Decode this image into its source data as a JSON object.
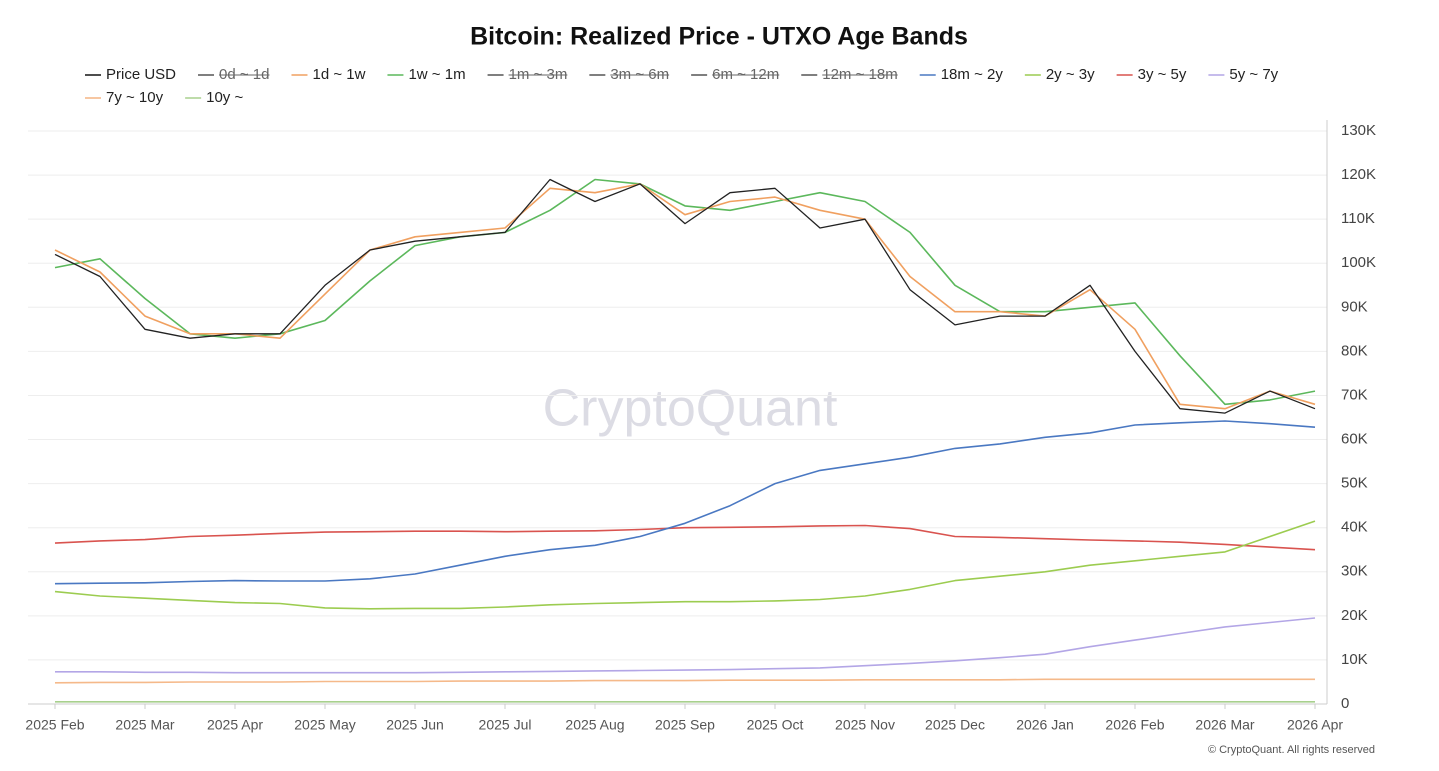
{
  "chart_data": {
    "type": "line",
    "title": "Bitcoin: Realized Price - UTXO Age Bands",
    "watermark": "CryptoQuant",
    "footer": "© CryptoQuant. All rights reserved",
    "categories": [
      "2025 Feb",
      null,
      "2025 Mar",
      null,
      "2025 Apr",
      null,
      "2025 May",
      null,
      "2025 Jun",
      null,
      "2025 Jul",
      null,
      "2025 Aug",
      null,
      "2025 Sep",
      null,
      "2025 Oct",
      null,
      "2025 Nov",
      null,
      "2025 Dec",
      null,
      "2026 Jan",
      null,
      "2026 Feb",
      null,
      "2026 Mar",
      null,
      "2026 Apr"
    ],
    "ylim": [
      0,
      130000
    ],
    "yticks": [
      0,
      {
        "value": 10000,
        "label": "10K"
      },
      {
        "value": 20000,
        "label": "20K"
      },
      {
        "value": 30000,
        "label": "30K"
      },
      {
        "value": 40000,
        "label": "40K"
      },
      {
        "value": 50000,
        "label": "50K"
      },
      {
        "value": 60000,
        "label": "60K"
      },
      {
        "value": 70000,
        "label": "70K"
      },
      {
        "value": 80000,
        "label": "80K"
      },
      {
        "value": 90000,
        "label": "90K"
      },
      {
        "value": 100000,
        "label": "100K"
      },
      {
        "value": 110000,
        "label": "110K"
      },
      {
        "value": 120000,
        "label": "120K"
      },
      {
        "value": 130000,
        "label": "130K"
      }
    ],
    "grid": true,
    "series": [
      {
        "name": "Price USD",
        "color": "#222222",
        "values": [
          102000,
          97000,
          85000,
          83000,
          84000,
          84000,
          95000,
          103000,
          105000,
          106000,
          107000,
          119000,
          114000,
          118000,
          109000,
          116000,
          117000,
          108000,
          110000,
          94000,
          86000,
          88000,
          88000,
          95000,
          80000,
          67000,
          66000,
          71000,
          67000
        ]
      },
      {
        "name": "0d ~ 1d",
        "color": "#555555",
        "visible": false
      },
      {
        "name": "1d ~ 1w",
        "color": "#f0a060",
        "values": [
          103000,
          98000,
          88000,
          84000,
          84000,
          83000,
          93000,
          103000,
          106000,
          107000,
          108000,
          117000,
          116000,
          118000,
          111000,
          114000,
          115000,
          112000,
          110000,
          97000,
          89000,
          89000,
          88000,
          94000,
          85000,
          68000,
          67000,
          71000,
          68000
        ]
      },
      {
        "name": "1w ~ 1m",
        "color": "#5cb85c",
        "values": [
          99000,
          101000,
          92000,
          84000,
          83000,
          84000,
          87000,
          96000,
          104000,
          106000,
          107000,
          112000,
          119000,
          118000,
          113000,
          112000,
          114000,
          116000,
          114000,
          107000,
          95000,
          89000,
          89000,
          90000,
          91000,
          79000,
          68000,
          69000,
          71000
        ]
      },
      {
        "name": "1m ~ 3m",
        "color": "#555555",
        "visible": false
      },
      {
        "name": "3m ~ 6m",
        "color": "#555555",
        "visible": false
      },
      {
        "name": "6m ~ 12m",
        "color": "#555555",
        "visible": false
      },
      {
        "name": "12m ~ 18m",
        "color": "#555555",
        "visible": false
      },
      {
        "name": "18m ~ 2y",
        "color": "#4a78c2",
        "values": [
          27300,
          27400,
          27500,
          27800,
          28000,
          27900,
          27900,
          28400,
          29500,
          31500,
          33500,
          35000,
          36000,
          38000,
          41000,
          45000,
          50000,
          53000,
          54500,
          56000,
          58000,
          59000,
          60500,
          61500,
          63300,
          63800,
          64200,
          63600,
          62800
        ]
      },
      {
        "name": "2y ~ 3y",
        "color": "#9ccc50",
        "values": [
          25500,
          24500,
          24000,
          23500,
          23000,
          22800,
          21800,
          21600,
          21700,
          21700,
          22000,
          22500,
          22800,
          23000,
          23200,
          23200,
          23400,
          23700,
          24500,
          26000,
          28000,
          29000,
          30000,
          31500,
          32500,
          33500,
          34500,
          38000,
          41500
        ]
      },
      {
        "name": "3y ~ 5y",
        "color": "#d9534f",
        "values": [
          36500,
          37000,
          37300,
          38000,
          38300,
          38700,
          39000,
          39100,
          39200,
          39200,
          39100,
          39200,
          39300,
          39600,
          40000,
          40100,
          40200,
          40400,
          40500,
          39800,
          38000,
          37800,
          37500,
          37200,
          37000,
          36700,
          36200,
          35600,
          35000
        ]
      },
      {
        "name": "5y ~ 7y",
        "color": "#b3a6e6",
        "values": [
          7300,
          7300,
          7200,
          7200,
          7100,
          7100,
          7100,
          7100,
          7100,
          7200,
          7300,
          7400,
          7500,
          7600,
          7700,
          7800,
          8000,
          8200,
          8700,
          9200,
          9800,
          10500,
          11300,
          13000,
          14500,
          16000,
          17500,
          18500,
          19500
        ]
      },
      {
        "name": "7y ~ 10y",
        "color": "#f5b98a",
        "values": [
          4800,
          4900,
          4900,
          5000,
          5000,
          5000,
          5100,
          5100,
          5100,
          5200,
          5200,
          5200,
          5300,
          5300,
          5300,
          5400,
          5400,
          5400,
          5500,
          5500,
          5500,
          5500,
          5600,
          5600,
          5600,
          5600,
          5600,
          5600,
          5600
        ]
      },
      {
        "name": "10y ~",
        "color": "#a8d08d",
        "values": [
          500,
          500,
          500,
          500,
          500,
          500,
          500,
          500,
          500,
          500,
          500,
          500,
          500,
          500,
          500,
          500,
          500,
          500,
          500,
          500,
          500,
          500,
          500,
          500,
          500,
          500,
          500,
          500,
          500
        ]
      }
    ]
  }
}
